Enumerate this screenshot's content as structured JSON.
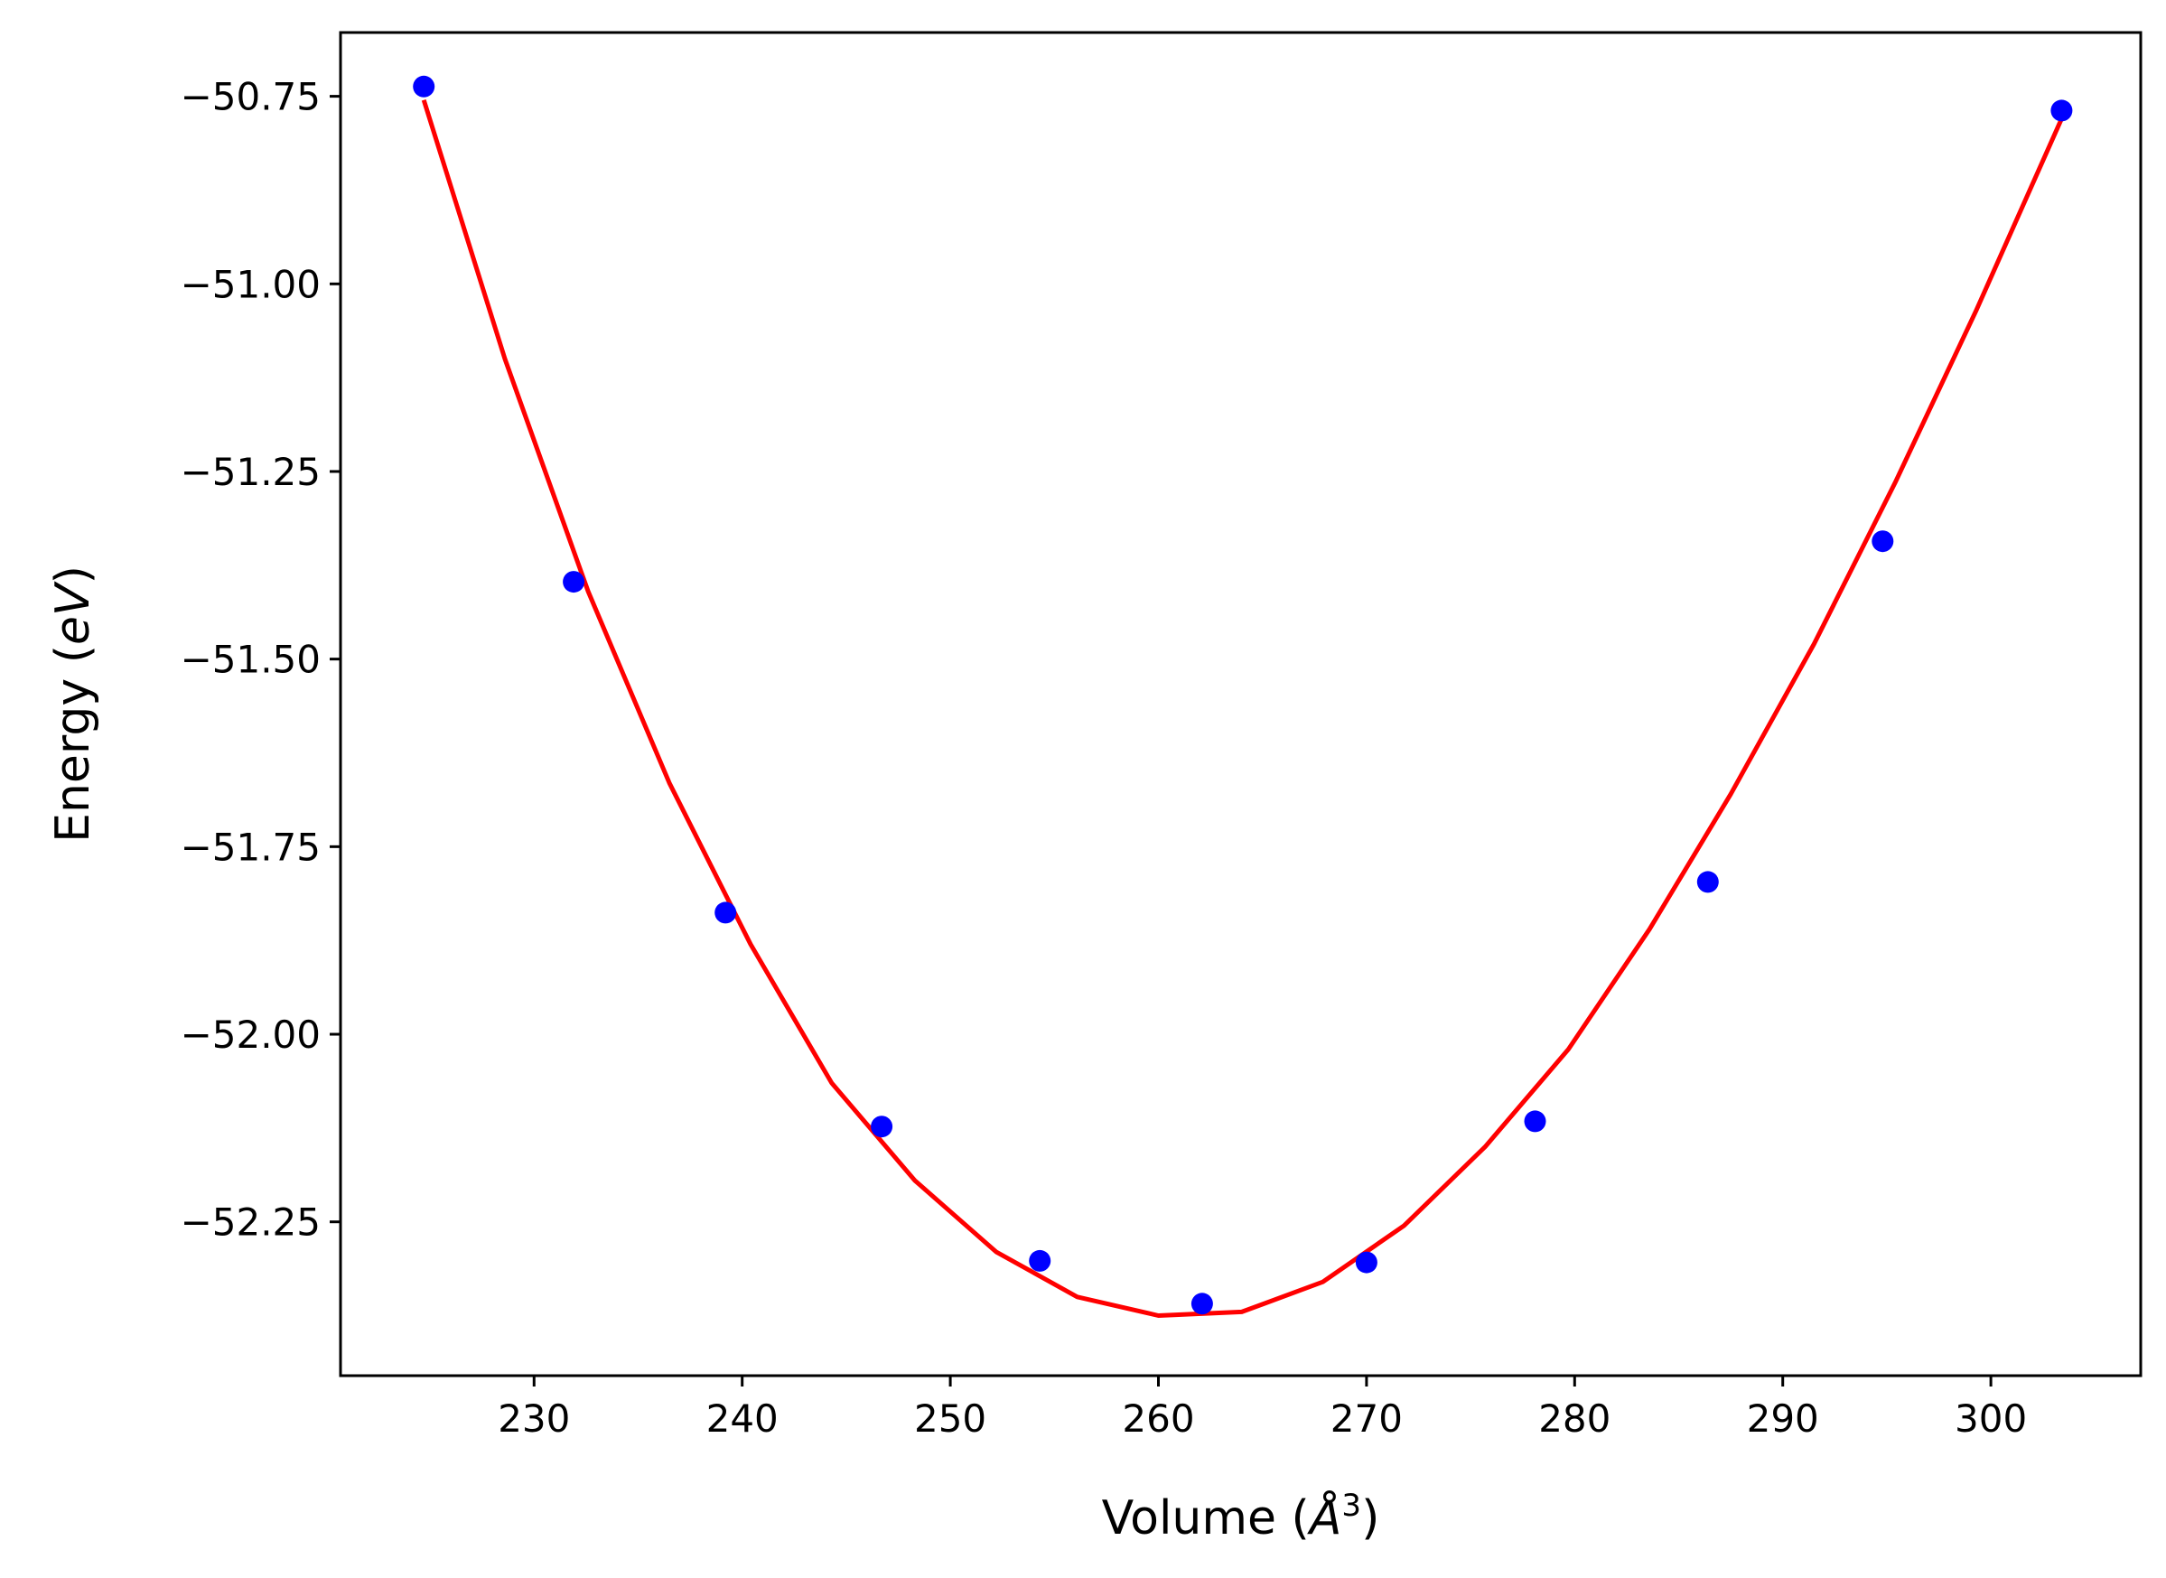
{
  "chart_data": {
    "type": "scatter",
    "title": "",
    "xlabel": {
      "prefix": "Volume (",
      "symbol": "Å",
      "exponent": "3",
      "suffix": ")"
    },
    "ylabel": {
      "prefix": "Energy (",
      "unit": "eV",
      "suffix": ")"
    },
    "xlim": [
      220.7,
      307.2
    ],
    "ylim": [
      -52.455,
      -50.665
    ],
    "xticks": [
      230,
      240,
      250,
      260,
      270,
      280,
      290,
      300
    ],
    "xtick_labels": [
      "230",
      "240",
      "250",
      "260",
      "270",
      "280",
      "290",
      "300"
    ],
    "yticks": [
      -50.75,
      -51.0,
      -51.25,
      -51.5,
      -51.75,
      -52.0,
      -52.25
    ],
    "ytick_labels": [
      "−50.75",
      "−51.00",
      "−51.25",
      "−51.50",
      "−51.75",
      "−52.00",
      "−52.25"
    ],
    "grid": false,
    "legend": "none",
    "series": [
      {
        "kind": "points",
        "color": "#0000ff",
        "x": [
          224.7,
          231.9,
          239.2,
          246.7,
          254.3,
          262.1,
          270.0,
          278.1,
          286.4,
          294.8,
          303.4
        ],
        "y": [
          -50.737,
          -51.397,
          -51.838,
          -52.123,
          -52.302,
          -52.359,
          -52.304,
          -52.116,
          -51.797,
          -51.343,
          -50.769
        ]
      },
      {
        "kind": "fit-line",
        "color": "#ff0000",
        "x": [
          224.7,
          228.6,
          232.6,
          236.5,
          240.4,
          244.3,
          248.3,
          252.2,
          256.1,
          260.0,
          264.0,
          267.9,
          271.8,
          275.7,
          279.7,
          283.6,
          287.5,
          291.5,
          295.4,
          299.3,
          303.4
        ],
        "y": [
          -50.755,
          -51.1,
          -51.41,
          -51.665,
          -51.88,
          -52.065,
          -52.195,
          -52.29,
          -52.35,
          -52.375,
          -52.37,
          -52.33,
          -52.255,
          -52.15,
          -52.02,
          -51.86,
          -51.68,
          -51.48,
          -51.265,
          -51.035,
          -50.78
        ]
      }
    ]
  }
}
